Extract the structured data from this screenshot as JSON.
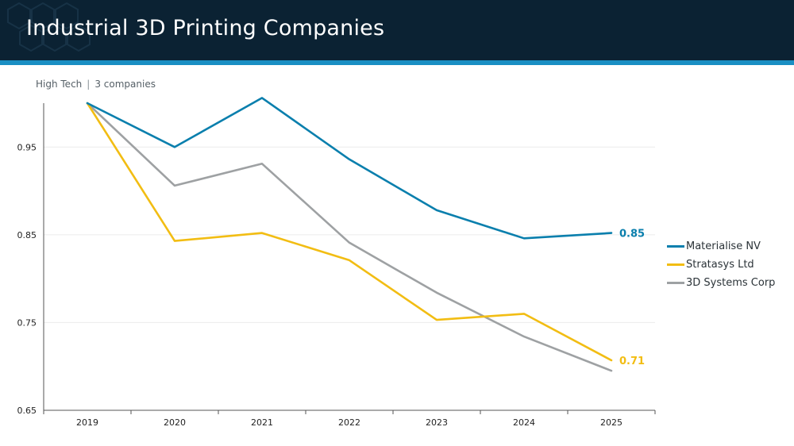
{
  "header": {
    "title": "Industrial 3D Printing Companies"
  },
  "subheader": {
    "sector": "High Tech",
    "separator": "|",
    "count": "3 companies"
  },
  "colors": {
    "header_bg": "#0b2233",
    "accent_bar": "#1a8fc3"
  },
  "chart_data": {
    "type": "line",
    "title": "Industrial 3D Printing Companies",
    "xlabel": "",
    "ylabel": "",
    "x": [
      "2019",
      "2020",
      "2021",
      "2022",
      "2023",
      "2024",
      "2025"
    ],
    "ylim": [
      0.65,
      1.0
    ],
    "yticks": [
      0.65,
      0.75,
      0.85,
      0.95
    ],
    "ytick_labels": [
      "0.65",
      "0.75",
      "0.85",
      "0.95"
    ],
    "grid": true,
    "legend_position": "right",
    "series": [
      {
        "name": "Materialise NV",
        "color": "#0a7fad",
        "values": [
          1.0,
          0.95,
          1.006,
          0.936,
          0.878,
          0.846,
          0.852
        ],
        "end_label": "0.85"
      },
      {
        "name": "Stratasys Ltd",
        "color": "#f2bd13",
        "values": [
          1.0,
          0.843,
          0.852,
          0.821,
          0.753,
          0.76,
          0.707
        ],
        "end_label": "0.71"
      },
      {
        "name": "3D Systems Corp",
        "color": "#9ea1a3",
        "values": [
          1.0,
          0.906,
          0.931,
          0.841,
          0.784,
          0.734,
          0.695
        ],
        "end_label": ""
      }
    ]
  }
}
